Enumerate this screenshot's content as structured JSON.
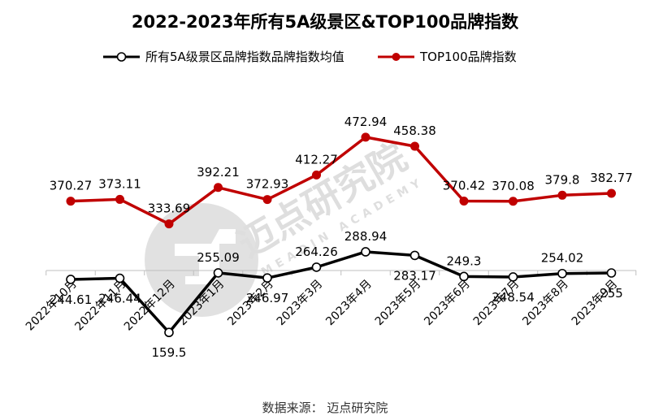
{
  "chart_data": {
    "type": "line",
    "title": "2022-2023年所有5A级景区&TOP100品牌指数",
    "categories": [
      "2022年10月",
      "2022年11月",
      "2022年12月",
      "2023年1月",
      "2023年2月",
      "2023年3月",
      "2023年4月",
      "2023年5月",
      "2023年6月",
      "2023年7月",
      "2023年8月",
      "2023年9月"
    ],
    "series": [
      {
        "name": "所有5A级景区品牌指数品牌指数均值",
        "color": "#000000",
        "marker": "hollow-circle",
        "values": [
          244.61,
          246.44,
          159.5,
          255.09,
          246.97,
          264.26,
          288.94,
          283.17,
          249.3,
          248.54,
          254.02,
          255
        ],
        "labels": [
          "244.61",
          "246.44",
          "159.5",
          "255.09",
          "246.97",
          "264.26",
          "288.94",
          "283.17",
          "249.3",
          "248.54",
          "254.02",
          "255"
        ]
      },
      {
        "name": "TOP100品牌指数",
        "color": "#c00000",
        "marker": "filled-circle",
        "values": [
          370.27,
          373.11,
          333.69,
          392.21,
          372.93,
          412.27,
          472.94,
          458.38,
          370.42,
          370.08,
          379.8,
          382.77
        ],
        "labels": [
          "370.27",
          "373.11",
          "333.69",
          "392.21",
          "372.93",
          "412.27",
          "472.94",
          "458.38",
          "370.42",
          "370.08",
          "379.8",
          "382.77"
        ]
      }
    ],
    "legend_position": "top",
    "grid": false
  },
  "source_text": "数据来源：  迈点研究院",
  "watermark": {
    "text": "迈点研究院",
    "subtext": "MEADIN ACADEMY"
  }
}
